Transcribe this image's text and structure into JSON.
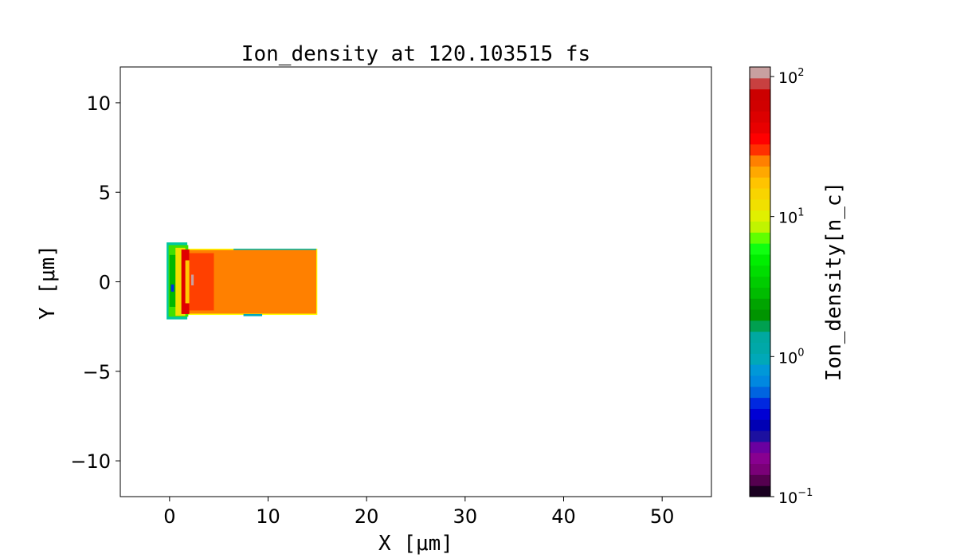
{
  "chart_data": {
    "type": "heatmap",
    "title": "Ion_density at 120.103515 fs",
    "xlabel": "X [μm]",
    "ylabel": "Y [μm]",
    "xlim": [
      -5,
      55
    ],
    "ylim": [
      -12,
      12
    ],
    "xticks": [
      0,
      10,
      20,
      30,
      40,
      50
    ],
    "xtick_labels": [
      "0",
      "10",
      "20",
      "30",
      "40",
      "50"
    ],
    "yticks": [
      10,
      5,
      0,
      -5,
      -10
    ],
    "ytick_labels": [
      "10",
      "5",
      "0",
      "−5",
      "−10"
    ],
    "grid": false,
    "colorbar": {
      "label": "Ion_density[n_c]",
      "scale": "log",
      "range": [
        0.1,
        117
      ],
      "ticks": [
        0.1,
        1,
        10,
        100
      ],
      "tick_labels": [
        [
          "10",
          "−1"
        ],
        [
          "10",
          "0"
        ],
        [
          "10",
          "1"
        ],
        [
          "10",
          "2"
        ]
      ],
      "colors_bottom_to_top": [
        "#1a0020",
        "#55004f",
        "#7a0078",
        "#880090",
        "#6a00a0",
        "#1c10a0",
        "#0000b4",
        "#0000d4",
        "#0028e0",
        "#0064e0",
        "#0088e0",
        "#0098d8",
        "#00a8b8",
        "#00a8a8",
        "#00a8a0",
        "#00a050",
        "#009400",
        "#00a400",
        "#00bc00",
        "#00cc00",
        "#00dd00",
        "#00ee00",
        "#10ff10",
        "#60ff00",
        "#c0f400",
        "#e0f000",
        "#f0e000",
        "#f8d400",
        "#ffc400",
        "#ffa800",
        "#ff8000",
        "#ff3000",
        "#ff0000",
        "#e80000",
        "#dc0000",
        "#d00000",
        "#cc0000",
        "#c84040",
        "#c8a0a0"
      ]
    },
    "regions": [
      {
        "x": [
          1.6,
          15.0
        ],
        "y": [
          -1.85,
          1.85
        ],
        "color": "#ffff00"
      },
      {
        "x": [
          1.7,
          14.9
        ],
        "y": [
          -1.78,
          1.78
        ],
        "color": "#ff8000"
      },
      {
        "x": [
          -0.3,
          1.8
        ],
        "y": [
          -2.1,
          2.2
        ],
        "color": "#00c8a0"
      },
      {
        "x": [
          -0.1,
          1.9
        ],
        "y": [
          -1.95,
          2.05
        ],
        "color": "#40e000"
      },
      {
        "x": [
          0.0,
          1.2
        ],
        "y": [
          -1.4,
          1.5
        ],
        "color": "#00b800"
      },
      {
        "x": [
          0.6,
          1.6
        ],
        "y": [
          -1.9,
          1.9
        ],
        "color": "#f0e000"
      },
      {
        "x": [
          0.15,
          0.45
        ],
        "y": [
          -0.55,
          -0.15
        ],
        "color": "#0030e0"
      },
      {
        "x": [
          1.2,
          2.0
        ],
        "y": [
          -1.8,
          1.8
        ],
        "color": "#e00000"
      },
      {
        "x": [
          1.6,
          2.4
        ],
        "y": [
          -1.2,
          1.2
        ],
        "color": "#ffc800"
      },
      {
        "x": [
          2.0,
          4.5
        ],
        "y": [
          -1.6,
          1.6
        ],
        "color": "#ff4000"
      },
      {
        "x": [
          2.2,
          2.45
        ],
        "y": [
          -0.2,
          0.4
        ],
        "color": "#c8a0a0"
      },
      {
        "x": [
          6.5,
          14.9
        ],
        "y": [
          1.78,
          1.85
        ],
        "color": "#00b8b0"
      },
      {
        "x": [
          7.5,
          9.4
        ],
        "y": [
          -1.92,
          -1.8
        ],
        "color": "#00a8b8"
      }
    ]
  }
}
